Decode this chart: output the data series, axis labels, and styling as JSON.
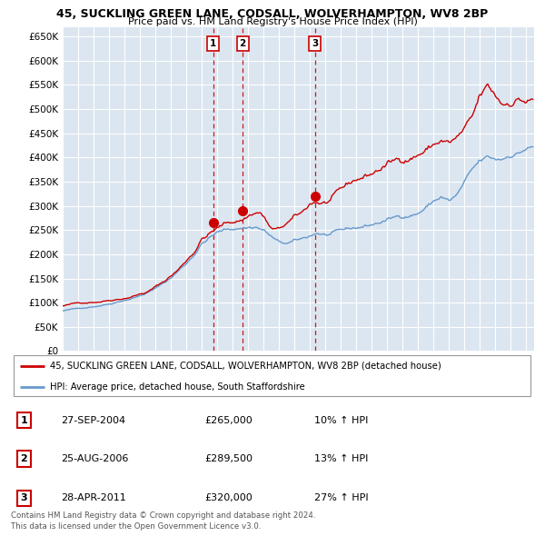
{
  "title1": "45, SUCKLING GREEN LANE, CODSALL, WOLVERHAMPTON, WV8 2BP",
  "title2": "Price paid vs. HM Land Registry's House Price Index (HPI)",
  "ylabel_ticks": [
    "£0",
    "£50K",
    "£100K",
    "£150K",
    "£200K",
    "£250K",
    "£300K",
    "£350K",
    "£400K",
    "£450K",
    "£500K",
    "£550K",
    "£600K",
    "£650K"
  ],
  "ytick_vals": [
    0,
    50000,
    100000,
    150000,
    200000,
    250000,
    300000,
    350000,
    400000,
    450000,
    500000,
    550000,
    600000,
    650000
  ],
  "ylim": [
    0,
    670000
  ],
  "xlim_start": 1995.0,
  "xlim_end": 2025.5,
  "sale_dates": [
    2004.74,
    2006.64,
    2011.32
  ],
  "sale_prices": [
    265000,
    289500,
    320000
  ],
  "sale_labels": [
    "1",
    "2",
    "3"
  ],
  "dashed_color": "#cc0000",
  "line_red_color": "#cc0000",
  "line_blue_color": "#6699cc",
  "background_color": "#dce6f1",
  "grid_color": "#ffffff",
  "legend_line1": "45, SUCKLING GREEN LANE, CODSALL, WOLVERHAMPTON, WV8 2BP (detached house)",
  "legend_line2": "HPI: Average price, detached house, South Staffordshire",
  "table_rows": [
    {
      "label": "1",
      "date": "27-SEP-2004",
      "price": "£265,000",
      "hpi": "10% ↑ HPI"
    },
    {
      "label": "2",
      "date": "25-AUG-2006",
      "price": "£289,500",
      "hpi": "13% ↑ HPI"
    },
    {
      "label": "3",
      "date": "28-APR-2011",
      "price": "£320,000",
      "hpi": "27% ↑ HPI"
    }
  ],
  "footer1": "Contains HM Land Registry data © Crown copyright and database right 2024.",
  "footer2": "This data is licensed under the Open Government Licence v3.0."
}
